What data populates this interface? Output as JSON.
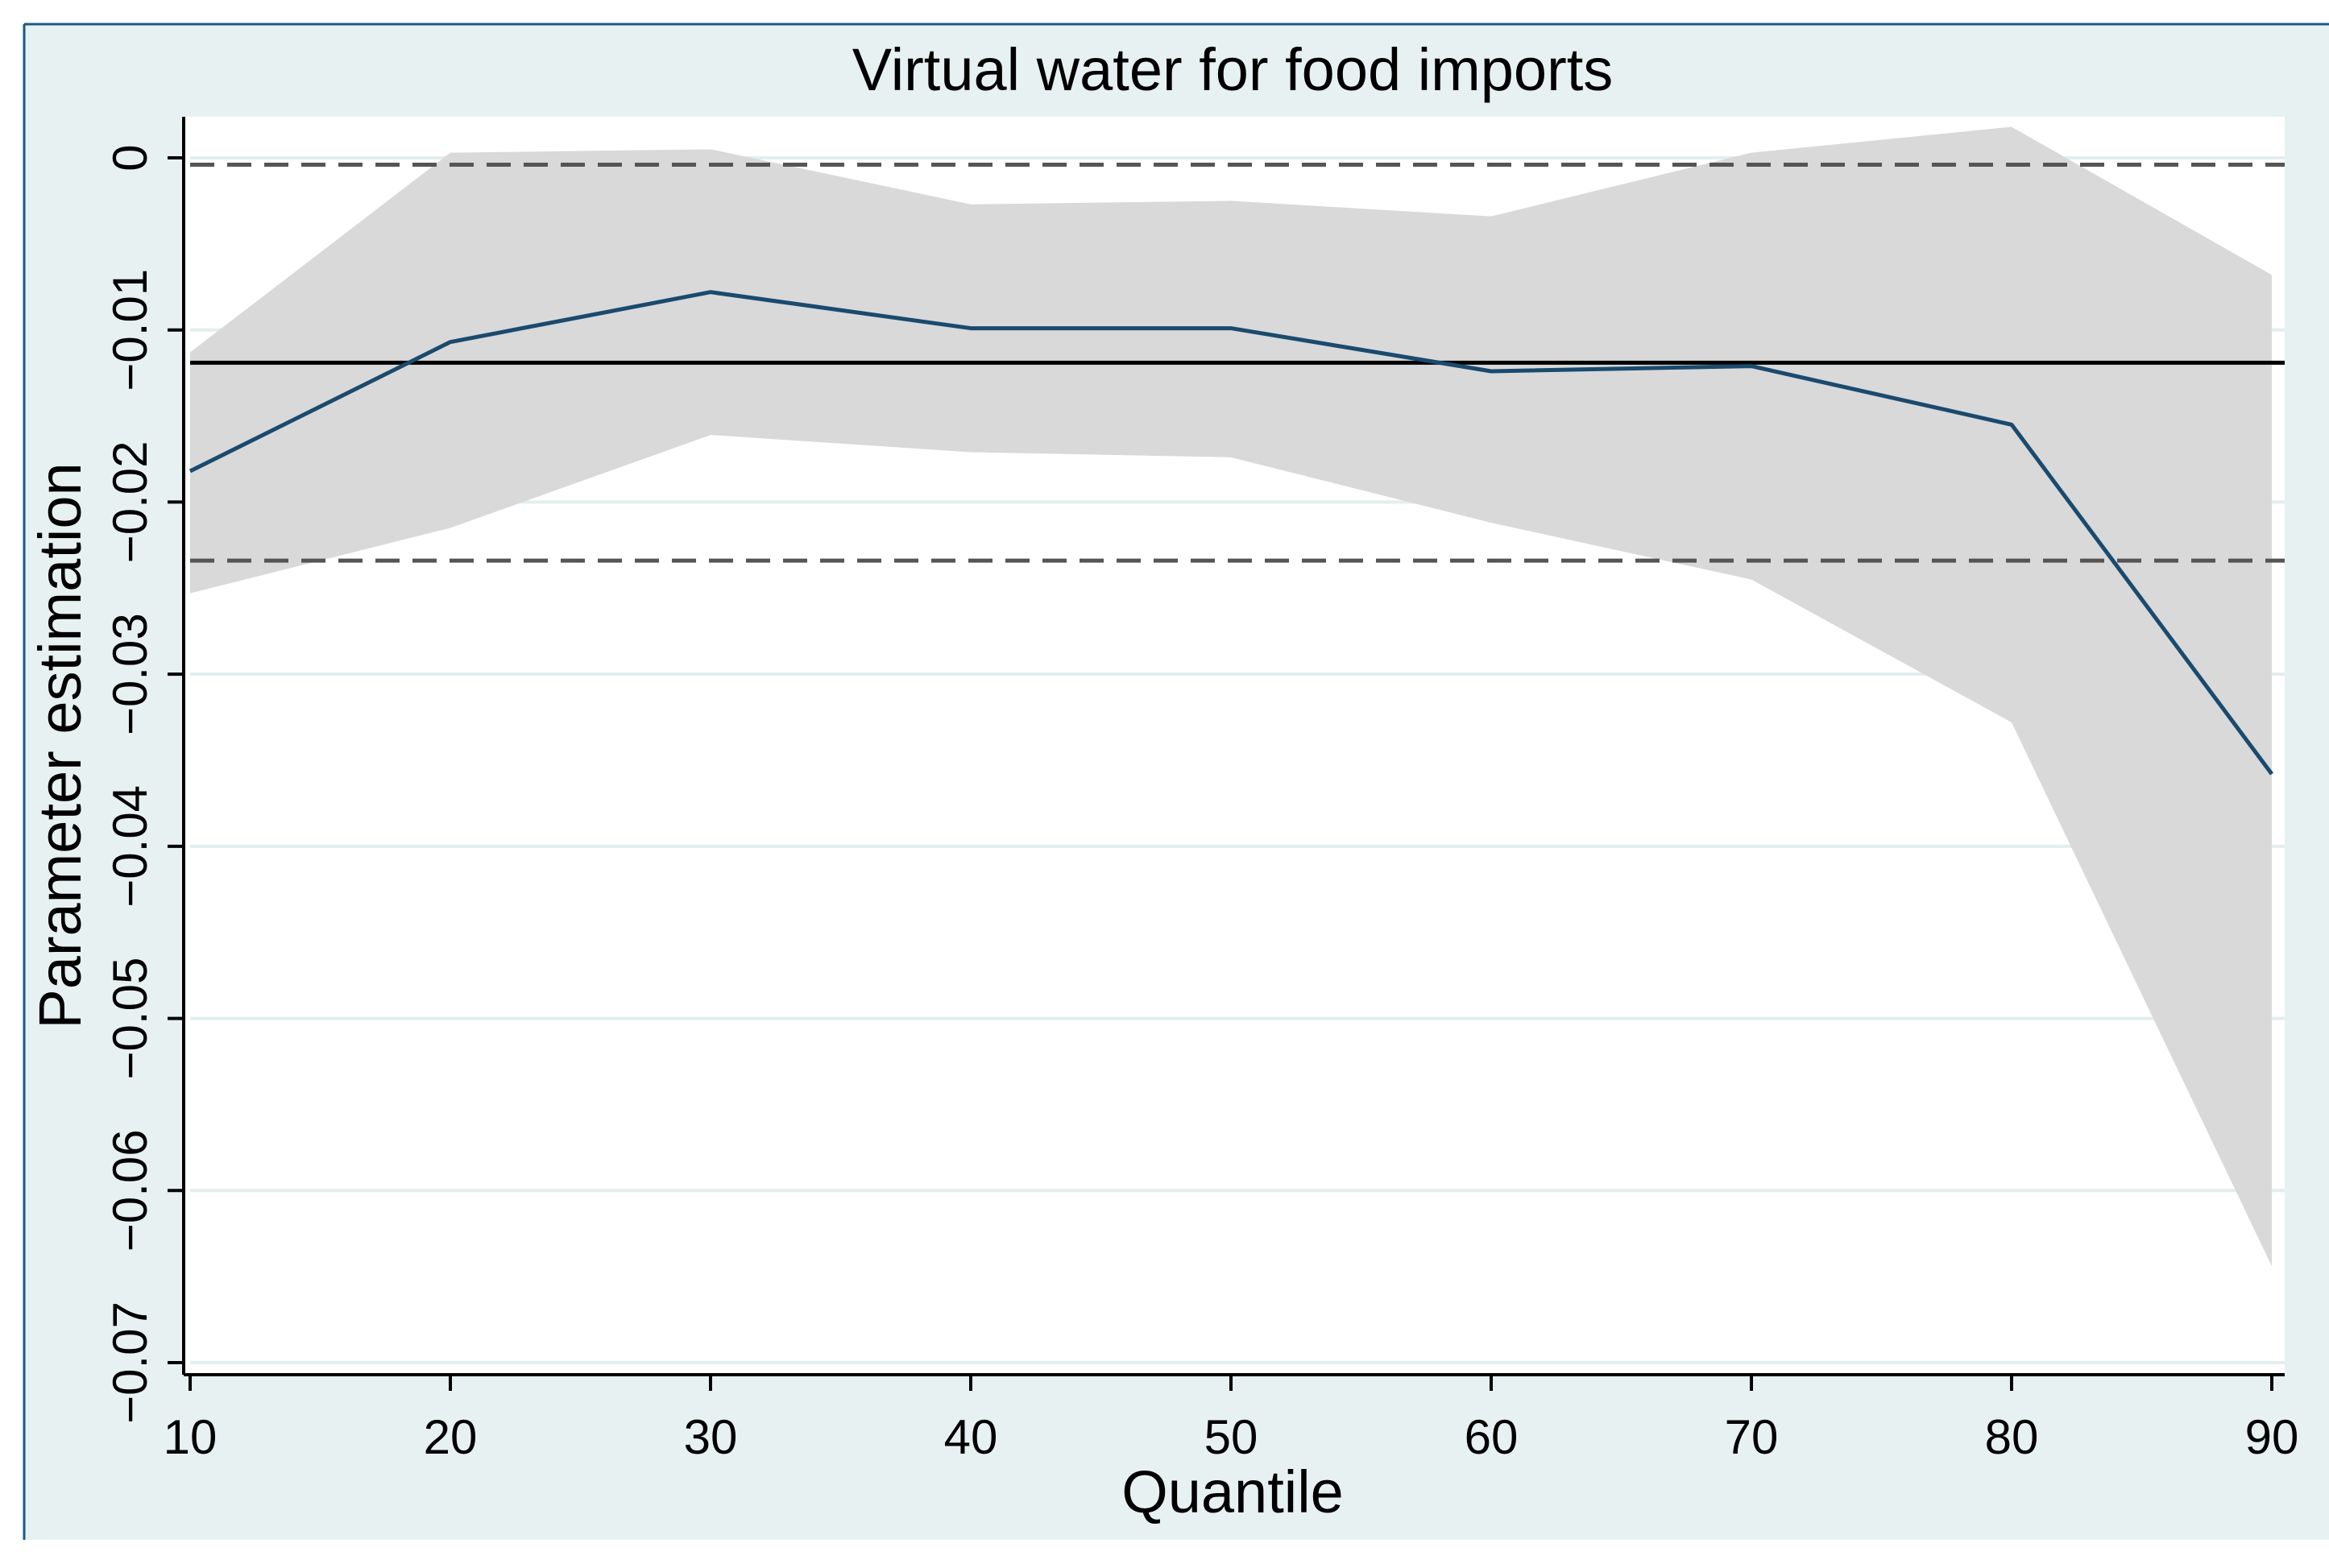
{
  "chart_data": {
    "type": "line",
    "title": "Virtual water for food imports",
    "xlabel": "Quantile",
    "ylabel": "Parameter estimation",
    "x": [
      10,
      20,
      30,
      40,
      50,
      60,
      70,
      80,
      90
    ],
    "xlim": [
      10,
      90
    ],
    "ylim": [
      -0.07,
      0
    ],
    "x_ticks": [
      10,
      20,
      30,
      40,
      50,
      60,
      70,
      80,
      90
    ],
    "x_tick_labels": [
      "10",
      "20",
      "30",
      "40",
      "50",
      "60",
      "70",
      "80",
      "90"
    ],
    "y_ticks": [
      0,
      -0.01,
      -0.02,
      -0.03,
      -0.04,
      -0.05,
      -0.06,
      -0.07
    ],
    "y_tick_labels": [
      "0",
      "−0.01",
      "−0.02",
      "−0.03",
      "−0.04",
      "−0.05",
      "−0.06",
      "−0.07"
    ],
    "grid": true,
    "series": [
      {
        "kind": "line",
        "values": [
          -0.0182,
          -0.0107,
          -0.0078,
          -0.0099,
          -0.0099,
          -0.0124,
          -0.0121,
          -0.0155,
          -0.0358
        ]
      }
    ],
    "confidence_band": {
      "upper": [
        -0.0113,
        0.0003,
        0.0005,
        -0.0027,
        -0.0025,
        -0.0034,
        0.0003,
        0.0018,
        -0.0068
      ],
      "lower": [
        -0.0253,
        -0.0215,
        -0.0161,
        -0.0171,
        -0.0174,
        -0.0212,
        -0.0245,
        -0.0328,
        -0.0644
      ]
    },
    "reference_lines": [
      {
        "style": "solid",
        "y": -0.0119
      },
      {
        "style": "dashed",
        "y": -0.0004
      },
      {
        "style": "dashed",
        "y": -0.0234
      }
    ],
    "colors": {
      "outer_background": "#e8f1f2",
      "plot_background": "#ffffff",
      "band": "#d9d9d9",
      "line": "#1a4a6e",
      "reference": "#000000",
      "dashed": "#555555",
      "grid": "#e3eeee",
      "frame_border": "#1a5a8a"
    }
  }
}
